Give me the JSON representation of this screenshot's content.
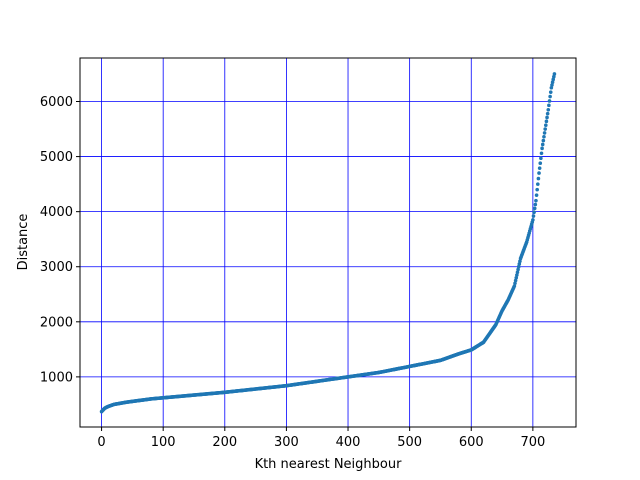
{
  "chart_data": {
    "type": "scatter",
    "title": "",
    "xlabel": "Kth nearest Neighbour",
    "ylabel": "Distance",
    "xlim": [
      -35,
      770
    ],
    "ylim": [
      90,
      6790
    ],
    "xticks": [
      0,
      100,
      200,
      300,
      400,
      500,
      600,
      700
    ],
    "yticks": [
      1000,
      2000,
      3000,
      4000,
      5000,
      6000
    ],
    "grid": true,
    "grid_color": "#0000ff",
    "point_color": "#1f77b4",
    "n_points": 736,
    "curve_x": [
      0,
      5,
      10,
      20,
      40,
      60,
      80,
      100,
      150,
      200,
      250,
      300,
      350,
      400,
      450,
      500,
      550,
      580,
      600,
      620,
      640,
      650,
      660,
      670,
      680,
      690,
      700,
      705,
      710,
      715,
      720,
      725,
      730,
      735
    ],
    "curve_y": [
      370,
      430,
      460,
      500,
      540,
      570,
      600,
      620,
      670,
      720,
      780,
      840,
      920,
      1000,
      1080,
      1190,
      1300,
      1420,
      1490,
      1630,
      1950,
      2200,
      2400,
      2650,
      3150,
      3450,
      3850,
      4200,
      4700,
      5150,
      5500,
      5850,
      6250,
      6500
    ]
  }
}
